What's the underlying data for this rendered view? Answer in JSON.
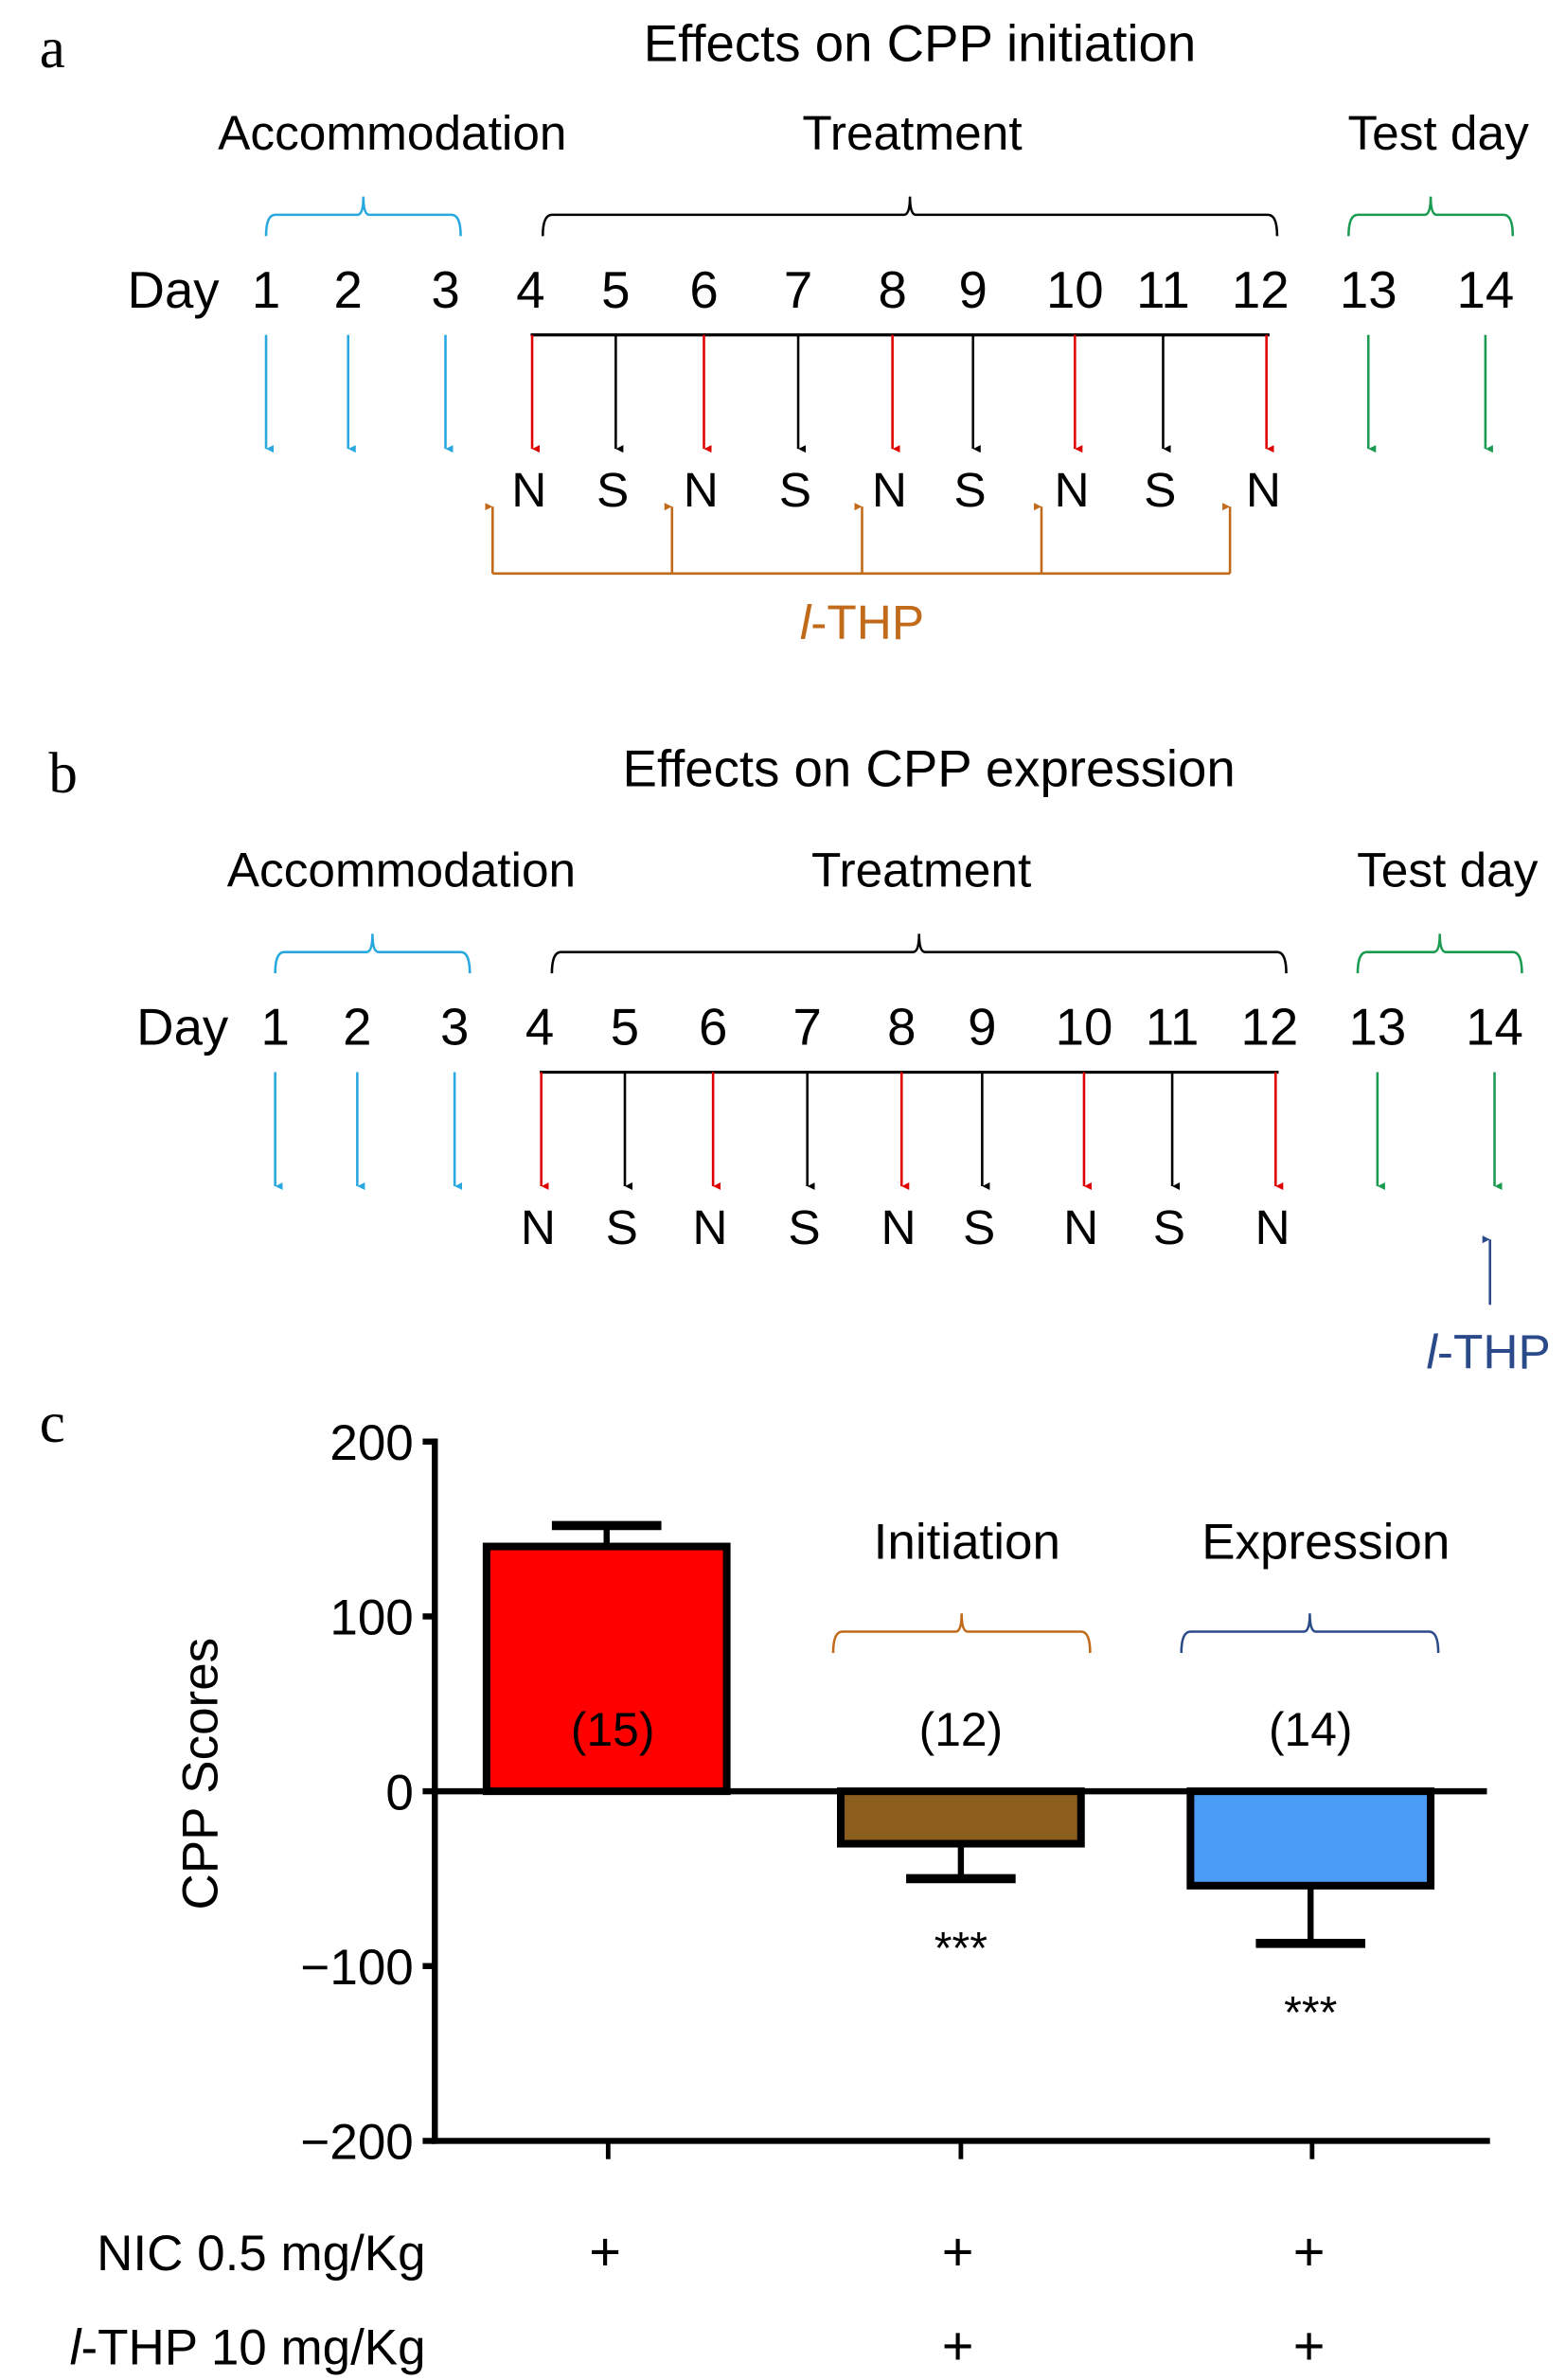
{
  "colors": {
    "accommodation": "#29a8e0",
    "treatment": "#000000",
    "test": "#1a9b50",
    "nicotine": "#e00000",
    "saline": "#000000",
    "lthp_a": "#c06a1a",
    "lthp_b": "#2a4a8a",
    "bar1": "#ff0000",
    "bar2": "#8b5e1e",
    "bar3": "#4a9cf5"
  },
  "panels": [
    {
      "letter": "a",
      "title": "Effects on CPP initiation",
      "phases": {
        "accommodation": "Accommodation",
        "treatment": "Treatment",
        "test": "Test day"
      },
      "day_label": "Day",
      "days": [
        "1",
        "2",
        "3",
        "4",
        "5",
        "6",
        "7",
        "8",
        "9",
        "10",
        "11",
        "12",
        "13",
        "14"
      ],
      "injections": [
        "N",
        "S",
        "N",
        "S",
        "N",
        "S",
        "N",
        "S",
        "N"
      ],
      "lthp_label": "l-THP",
      "lthp_prefix": "l",
      "lthp_suffix": "-THP"
    },
    {
      "letter": "b",
      "title": "Effects on CPP expression",
      "phases": {
        "accommodation": "Accommodation",
        "treatment": "Treatment",
        "test": "Test day"
      },
      "day_label": "Day",
      "days": [
        "1",
        "2",
        "3",
        "4",
        "5",
        "6",
        "7",
        "8",
        "9",
        "10",
        "11",
        "12",
        "13",
        "14"
      ],
      "injections": [
        "N",
        "S",
        "N",
        "S",
        "N",
        "S",
        "N",
        "S",
        "N"
      ],
      "lthp_label": "l-THP",
      "lthp_prefix": "l",
      "lthp_suffix": "-THP"
    }
  ],
  "chart_data": {
    "type": "bar",
    "panel_letter": "c",
    "ylabel": "CPP Scores",
    "ylim": [
      -200,
      200
    ],
    "yticks": [
      "200",
      "100",
      "0",
      "−100",
      "−200"
    ],
    "ytick_values": [
      200,
      100,
      0,
      -100,
      -200
    ],
    "categories": [
      "NIC",
      "NIC + l-THP (Initiation)",
      "NIC + l-THP (Expression)"
    ],
    "values": [
      140,
      -30,
      -54
    ],
    "errors": [
      12,
      20,
      33
    ],
    "n_labels": [
      "(15)",
      "(12)",
      "(14)"
    ],
    "significance": [
      "",
      "***",
      "***"
    ],
    "group_labels": {
      "initiation": "Initiation",
      "expression": "Expression"
    },
    "treatment_rows": [
      {
        "label": "NIC 0.5 mg/Kg",
        "prefix": "",
        "marks": [
          "+",
          "+",
          "+"
        ]
      },
      {
        "label": "-THP 10 mg/Kg",
        "prefix": "l",
        "marks": [
          "",
          "+",
          "+"
        ]
      }
    ]
  }
}
